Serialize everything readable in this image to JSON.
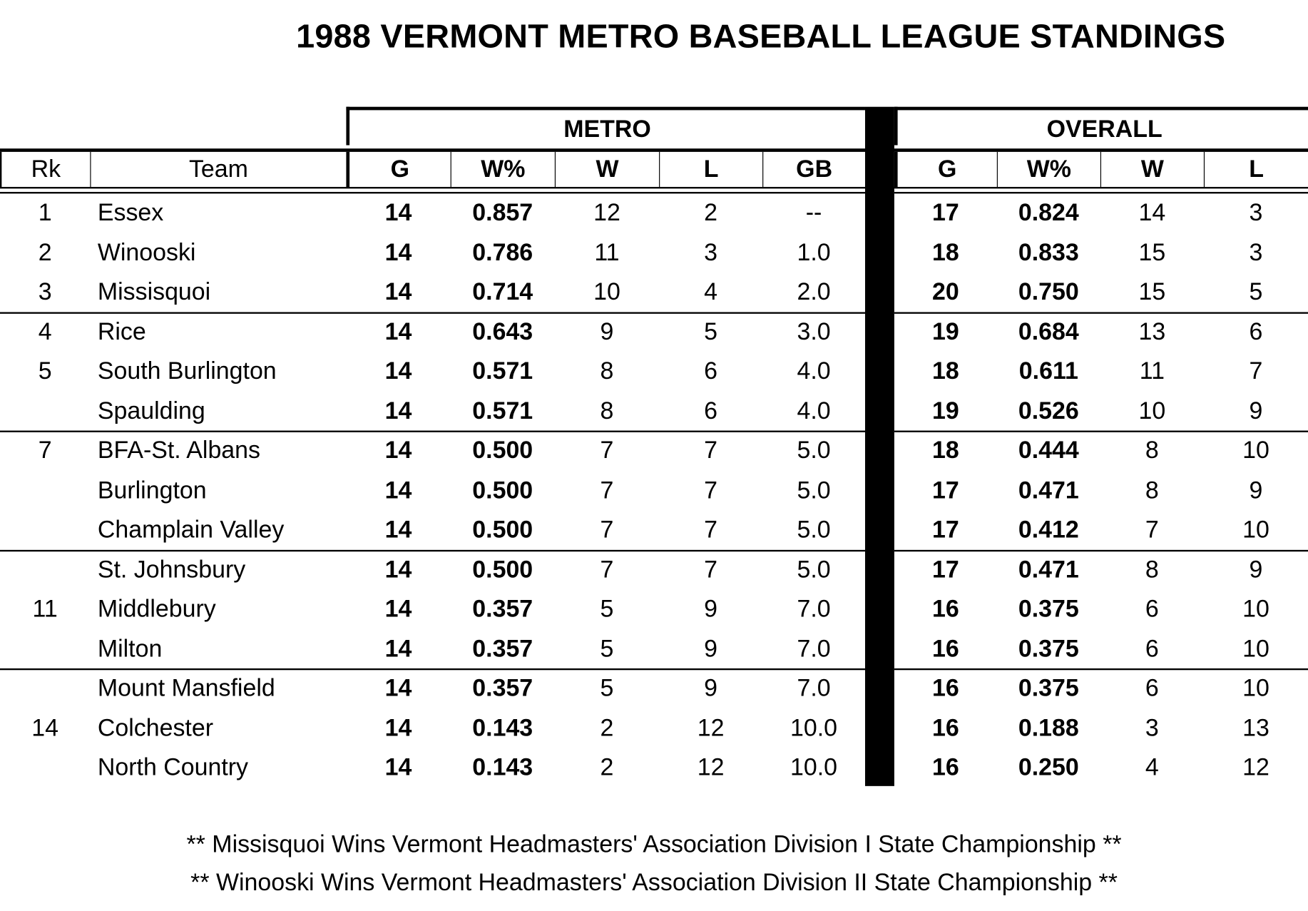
{
  "title": "1988 VERMONT METRO BASEBALL LEAGUE STANDINGS",
  "groups": {
    "metro": "METRO",
    "overall": "OVERALL"
  },
  "columns": [
    "Rk",
    "Team",
    "G",
    "W%",
    "W",
    "L",
    "GB",
    "G",
    "W%",
    "W",
    "L"
  ],
  "rows": [
    [
      "1",
      "Essex",
      "14",
      "0.857",
      "12",
      "2",
      "--",
      "17",
      "0.824",
      "14",
      "3"
    ],
    [
      "2",
      "Winooski",
      "14",
      "0.786",
      "11",
      "3",
      "1.0",
      "18",
      "0.833",
      "15",
      "3"
    ],
    [
      "3",
      "Missisquoi",
      "14",
      "0.714",
      "10",
      "4",
      "2.0",
      "20",
      "0.750",
      "15",
      "5"
    ],
    [
      "4",
      "Rice",
      "14",
      "0.643",
      "9",
      "5",
      "3.0",
      "19",
      "0.684",
      "13",
      "6"
    ],
    [
      "5",
      "South Burlington",
      "14",
      "0.571",
      "8",
      "6",
      "4.0",
      "18",
      "0.611",
      "11",
      "7"
    ],
    [
      "",
      "Spaulding",
      "14",
      "0.571",
      "8",
      "6",
      "4.0",
      "19",
      "0.526",
      "10",
      "9"
    ],
    [
      "7",
      "BFA-St. Albans",
      "14",
      "0.500",
      "7",
      "7",
      "5.0",
      "18",
      "0.444",
      "8",
      "10"
    ],
    [
      "",
      "Burlington",
      "14",
      "0.500",
      "7",
      "7",
      "5.0",
      "17",
      "0.471",
      "8",
      "9"
    ],
    [
      "",
      "Champlain Valley",
      "14",
      "0.500",
      "7",
      "7",
      "5.0",
      "17",
      "0.412",
      "7",
      "10"
    ],
    [
      "",
      "St. Johnsbury",
      "14",
      "0.500",
      "7",
      "7",
      "5.0",
      "17",
      "0.471",
      "8",
      "9"
    ],
    [
      "11",
      "Middlebury",
      "14",
      "0.357",
      "5",
      "9",
      "7.0",
      "16",
      "0.375",
      "6",
      "10"
    ],
    [
      "",
      "Milton",
      "14",
      "0.357",
      "5",
      "9",
      "7.0",
      "16",
      "0.375",
      "6",
      "10"
    ],
    [
      "",
      "Mount Mansfield",
      "14",
      "0.357",
      "5",
      "9",
      "7.0",
      "16",
      "0.375",
      "6",
      "10"
    ],
    [
      "14",
      "Colchester",
      "14",
      "0.143",
      "2",
      "12",
      "10.0",
      "16",
      "0.188",
      "3",
      "13"
    ],
    [
      "",
      "North Country",
      "14",
      "0.143",
      "2",
      "12",
      "10.0",
      "16",
      "0.250",
      "4",
      "12"
    ]
  ],
  "footnotes": [
    "** Missisquoi Wins Vermont Headmasters' Association Division I State Championship **",
    "** Winooski Wins Vermont Headmasters' Association Division II State Championship **"
  ]
}
